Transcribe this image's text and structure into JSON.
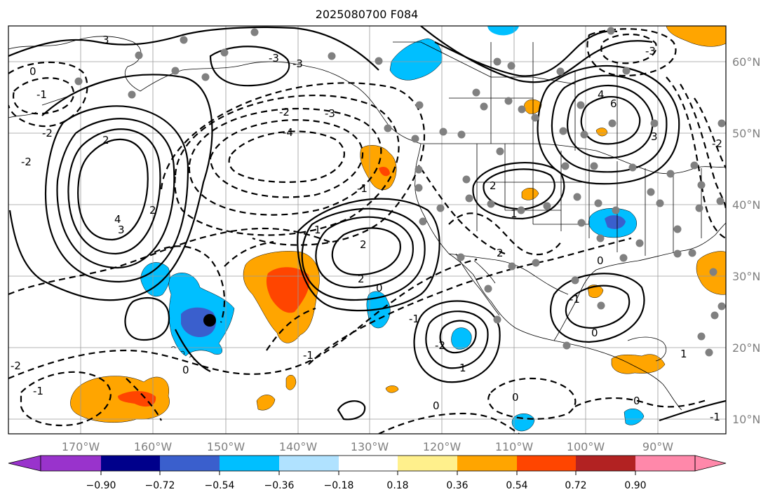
{
  "title": "2025080700 F084",
  "longitude_labels": [
    "170°W",
    "160°W",
    "150°W",
    "140°W",
    "130°W",
    "120°W",
    "110°W",
    "100°W",
    "90°W"
  ],
  "latitude_labels": [
    "60°N",
    "50°N",
    "40°N",
    "30°N",
    "20°N",
    "10°N"
  ],
  "colorbar": {
    "tick_labels": [
      "−0.90",
      "−0.72",
      "−0.54",
      "−0.36",
      "−0.18",
      "0.18",
      "0.36",
      "0.54",
      "0.72",
      "0.90"
    ],
    "colors": [
      "#9933cc",
      "#00008b",
      "#3a5fcd",
      "#00bfff",
      "#b0e2ff",
      "#ffffff",
      "#fff08c",
      "#ffa500",
      "#ff4500",
      "#b22222",
      "#ff88aa"
    ]
  },
  "contour_labels": [
    "3",
    "-3",
    "-1",
    "2",
    "2",
    "4",
    "3",
    "-3",
    "-4",
    "-1",
    "1",
    "2",
    "0",
    "-2",
    "-2",
    "0",
    "-1",
    "-2",
    "1",
    "2",
    "2",
    "4",
    "3",
    "6",
    "-3",
    "-3",
    "-2",
    "1",
    "2",
    "-2",
    "0",
    "0",
    "-1",
    "1",
    "0",
    "0",
    "-2",
    "-1",
    "-1",
    "-1",
    "0",
    "0"
  ],
  "fill_colors": {
    "light_orange": "#ffa500",
    "red_orange": "#ff4500",
    "sky": "#00bfff",
    "royal": "#3a5fcd",
    "pale_blue": "#b0e2ff"
  },
  "marker_color": "#000000",
  "station_color": "#808080"
}
